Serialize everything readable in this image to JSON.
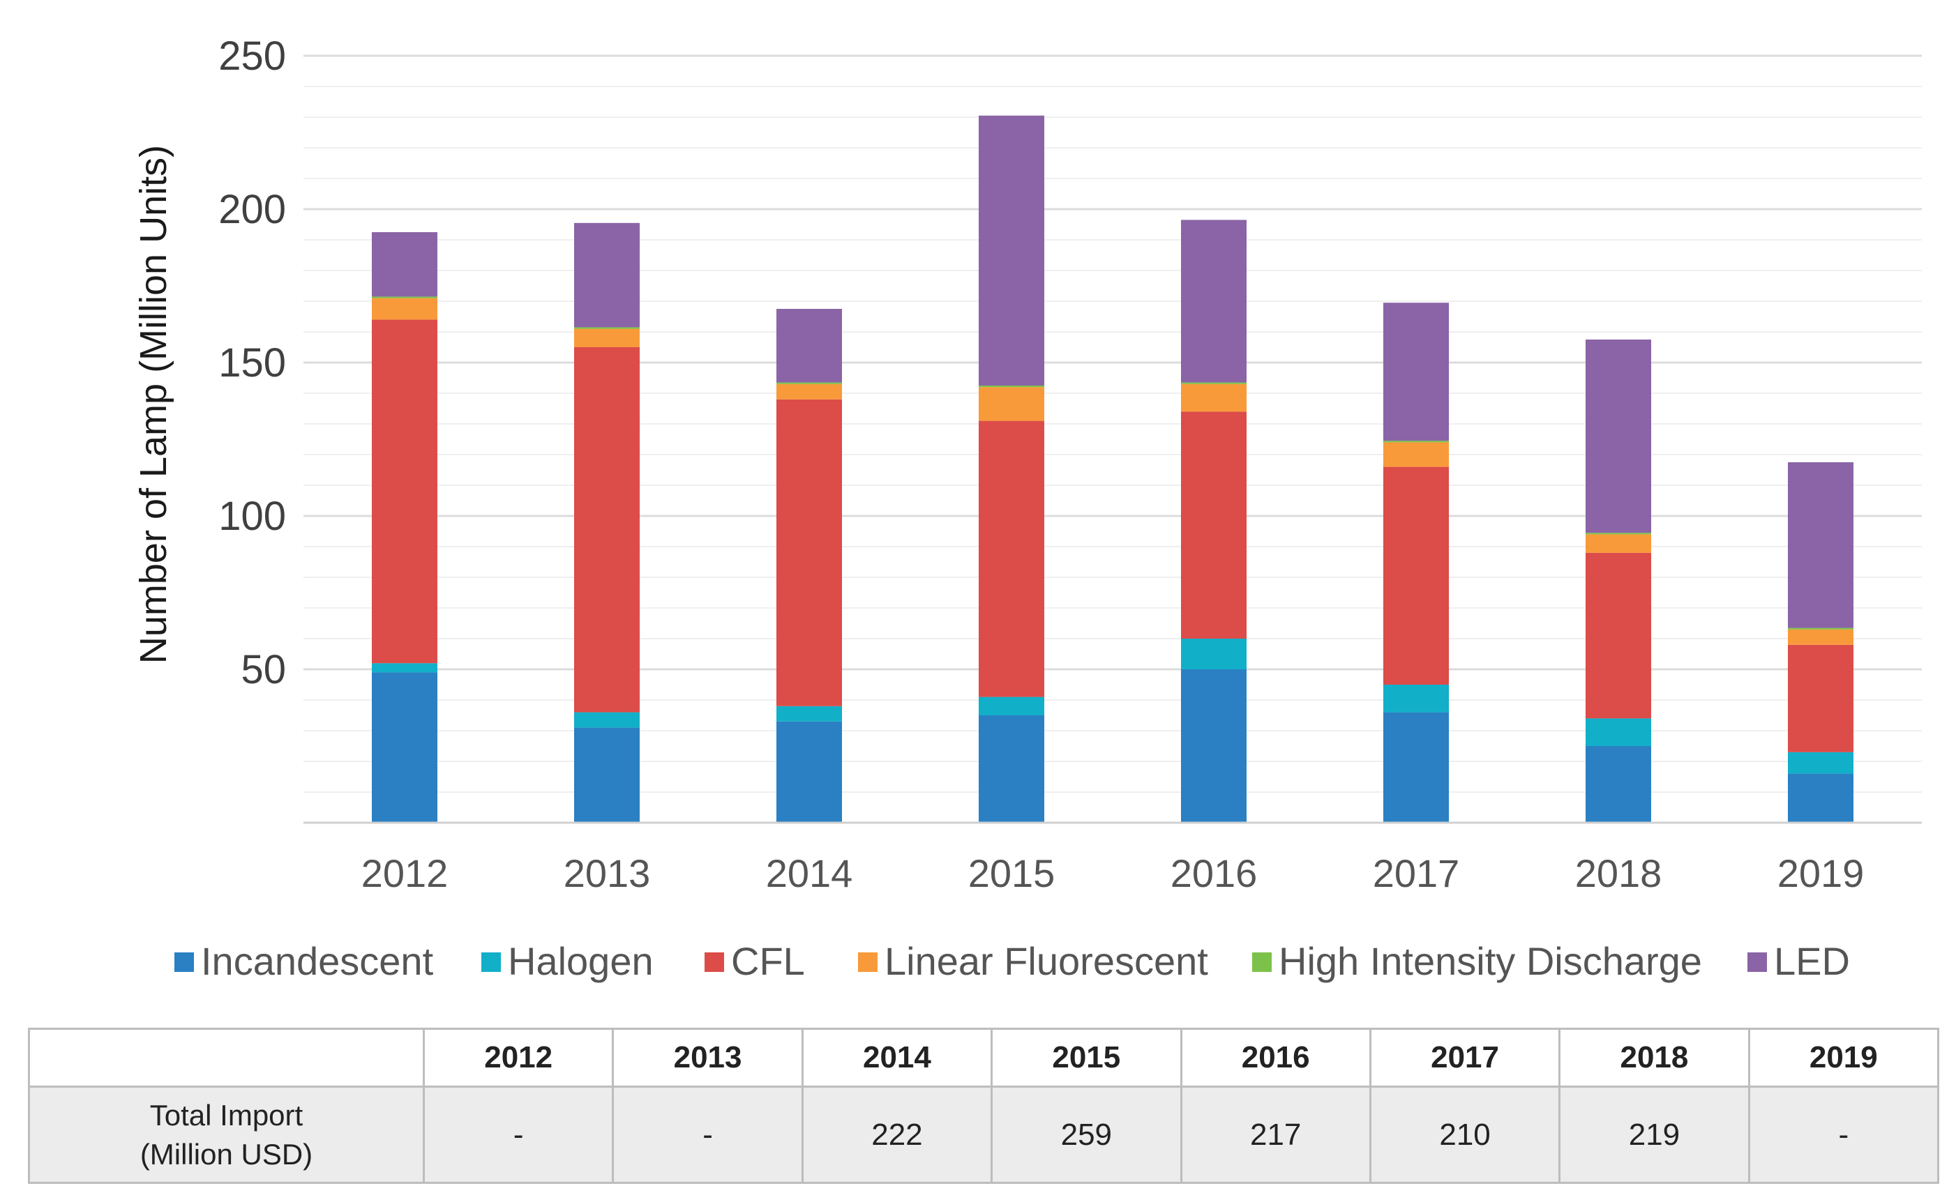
{
  "chart_data": {
    "type": "bar",
    "stacked": true,
    "title": "",
    "xlabel": "",
    "ylabel": "Number of Lamp (Million Units)",
    "ylim": [
      0,
      250
    ],
    "yticks": [
      50,
      100,
      150,
      200,
      250
    ],
    "minor_grid_step": 10,
    "grid": true,
    "legend_position": "bottom",
    "categories": [
      "2012",
      "2013",
      "2014",
      "2015",
      "2016",
      "2017",
      "2018",
      "2019"
    ],
    "series": [
      {
        "name": "Incandescent",
        "color": "#2a80c3",
        "values": [
          49,
          31,
          33,
          35,
          50,
          36,
          25,
          16
        ]
      },
      {
        "name": "Halogen",
        "color": "#12afc9",
        "values": [
          3,
          5,
          5,
          6,
          10,
          9,
          9,
          7
        ]
      },
      {
        "name": "CFL",
        "color": "#dc4c48",
        "values": [
          112,
          119,
          100,
          90,
          74,
          71,
          54,
          35
        ]
      },
      {
        "name": "Linear Fluorescent",
        "color": "#f89a3a",
        "values": [
          7,
          6,
          5,
          11,
          9,
          8,
          6,
          5
        ]
      },
      {
        "name": "High Intensity Discharge",
        "color": "#7cc24a",
        "values": [
          0.5,
          0.5,
          0.5,
          0.5,
          0.5,
          0.5,
          0.5,
          0.5
        ]
      },
      {
        "name": "LED",
        "color": "#8a64a6",
        "values": [
          21,
          34,
          24,
          88,
          53,
          45,
          63,
          54
        ]
      }
    ]
  },
  "table": {
    "headers": [
      "",
      "2012",
      "2013",
      "2014",
      "2015",
      "2016",
      "2017",
      "2018",
      "2019"
    ],
    "row_label_line1": "Total Import",
    "row_label_line2": "(Million USD)",
    "values": [
      "-",
      "-",
      "222",
      "259",
      "217",
      "210",
      "219",
      "-"
    ]
  }
}
